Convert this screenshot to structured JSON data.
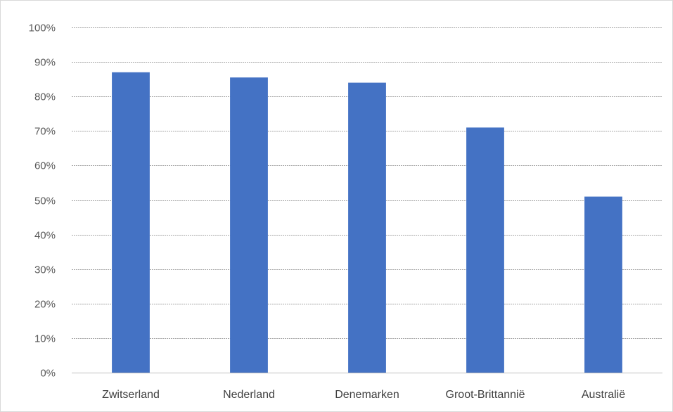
{
  "chart_data": {
    "type": "bar",
    "categories": [
      "Zwitserland",
      "Nederland",
      "Denemarken",
      "Groot-Brittannië",
      "Australië"
    ],
    "values": [
      0.87,
      0.855,
      0.84,
      0.71,
      0.51
    ],
    "title": "",
    "xlabel": "",
    "ylabel": "",
    "ylim": [
      0,
      1
    ],
    "yticks": [
      {
        "value": 0,
        "label": "0%"
      },
      {
        "value": 0.1,
        "label": "10%"
      },
      {
        "value": 0.2,
        "label": "20%"
      },
      {
        "value": 0.3,
        "label": "30%"
      },
      {
        "value": 0.4,
        "label": "40%"
      },
      {
        "value": 0.5,
        "label": "50%"
      },
      {
        "value": 0.6,
        "label": "60%"
      },
      {
        "value": 0.7,
        "label": "70%"
      },
      {
        "value": 0.8,
        "label": "80%"
      },
      {
        "value": 0.9,
        "label": "90%"
      },
      {
        "value": 1.0,
        "label": "100%"
      }
    ],
    "grid": true,
    "legend": "none",
    "colors": {
      "bar": "#4472c4",
      "grid": "#a6a6a6",
      "axis": "#bfbfbf"
    }
  }
}
